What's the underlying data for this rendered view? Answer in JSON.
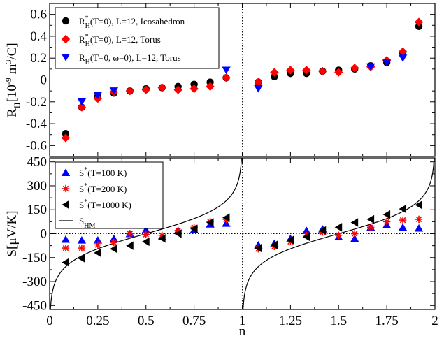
{
  "chart_data": [
    {
      "type": "scatter",
      "panel": "top",
      "ylabel": "R",
      "ylabel_sub": "H",
      "ylabel_rest": "[10",
      "ylabel_exp1": "-9",
      "ylabel_rest2": " m",
      "ylabel_exp2": "3",
      "ylabel_rest3": "/C]",
      "xlim": [
        0,
        2
      ],
      "ylim": [
        -0.7,
        0.7
      ],
      "yticks": [
        -0.6,
        -0.4,
        -0.2,
        0,
        0.2,
        0.4,
        0.6
      ],
      "ytick_labels": [
        "-0.6",
        "-0.4",
        "-0.2",
        "0",
        "0.2",
        "0.4",
        "0.6"
      ],
      "legend_position": "top-left",
      "x": [
        0.0833,
        0.1667,
        0.25,
        0.3333,
        0.4167,
        0.5,
        0.5833,
        0.6667,
        0.75,
        0.8333,
        0.9167,
        1.0833,
        1.1667,
        1.25,
        1.3333,
        1.4167,
        1.5,
        1.5833,
        1.6667,
        1.75,
        1.8333,
        1.9167
      ],
      "series": [
        {
          "name": "R*_H(T=0), L=12, Icosahedron",
          "legend_main": "R",
          "legend_sup": "*",
          "legend_sub": "H",
          "legend_rest": "(T=0), L=12, Icosahedron",
          "marker": "circle",
          "color": "#000000",
          "values": [
            -0.49,
            -0.25,
            -0.15,
            -0.12,
            -0.1,
            -0.08,
            -0.07,
            -0.06,
            -0.04,
            -0.02,
            0.02,
            -0.02,
            0.03,
            0.06,
            0.06,
            0.08,
            0.09,
            0.1,
            0.13,
            0.16,
            0.25,
            0.49
          ]
        },
        {
          "name": "R*_H(T=0), L=12, Torus",
          "legend_main": "R",
          "legend_sup": "*",
          "legend_sub": "H",
          "legend_rest": "(T=0), L=12, Torus",
          "marker": "diamond",
          "color": "#ff0000",
          "values": [
            -0.53,
            -0.25,
            -0.17,
            -0.11,
            -0.1,
            -0.09,
            -0.07,
            -0.09,
            -0.08,
            -0.06,
            0.02,
            -0.02,
            0.07,
            0.09,
            0.09,
            0.08,
            0.07,
            0.11,
            0.12,
            0.18,
            0.26,
            0.53
          ]
        },
        {
          "name": "R_H(T=0, ω=0), L=12, Torus",
          "legend_main": "R",
          "legend_sup": "",
          "legend_sub": "H",
          "legend_rest": "(T=0, ω=0), L=12, Torus",
          "marker": "triangle-down",
          "color": "#0000ff",
          "values": [
            null,
            -0.2,
            -0.14,
            -0.1,
            null,
            null,
            null,
            null,
            null,
            null,
            0.09,
            -0.08,
            null,
            null,
            null,
            null,
            null,
            null,
            0.12,
            0.16,
            0.2,
            null
          ]
        }
      ]
    },
    {
      "type": "scatter",
      "panel": "bottom",
      "xlabel": "n",
      "ylabel": "S[μV/K]",
      "xlim": [
        0,
        2
      ],
      "ylim": [
        -475,
        475
      ],
      "xticks": [
        0,
        0.25,
        0.5,
        0.75,
        1,
        1.25,
        1.5,
        1.75,
        2
      ],
      "xtick_labels": [
        "0",
        "0.25",
        "0.5",
        "0.75",
        "1",
        "1.25",
        "1.5",
        "1.75",
        "2"
      ],
      "yticks": [
        -450,
        -300,
        -150,
        0,
        150,
        300,
        450
      ],
      "ytick_labels": [
        "-450",
        "-300",
        "-150",
        "0",
        "150",
        "300",
        "450"
      ],
      "legend_position": "top-left",
      "x": [
        0.0833,
        0.1667,
        0.25,
        0.3333,
        0.4167,
        0.5,
        0.5833,
        0.6667,
        0.75,
        0.8333,
        0.9167,
        1.0833,
        1.1667,
        1.25,
        1.3333,
        1.4167,
        1.5,
        1.5833,
        1.6667,
        1.75,
        1.8333,
        1.9167
      ],
      "series": [
        {
          "name": "S*(T=100 K)",
          "legend_main": "S",
          "legend_sup": "*",
          "legend_sub": "",
          "legend_rest": "(T=100 K)",
          "marker": "triangle-up",
          "color": "#0000ff",
          "values": [
            -35,
            -40,
            -40,
            -30,
            0,
            25,
            -20,
            20,
            25,
            60,
            65,
            -70,
            -60,
            -30,
            20,
            30,
            -20,
            -30,
            40,
            55,
            40,
            35
          ]
        },
        {
          "name": "S*(T=200 K)",
          "legend_main": "S",
          "legend_sup": "*",
          "legend_sub": "",
          "legend_rest": "(T=200 K)",
          "marker": "asterisk",
          "color": "#ff0000",
          "values": [
            -90,
            -90,
            -70,
            -55,
            0,
            -5,
            -10,
            20,
            40,
            75,
            90,
            -95,
            -80,
            -50,
            -10,
            10,
            -10,
            0,
            40,
            75,
            85,
            90
          ]
        },
        {
          "name": "S*(T=1000 K)",
          "legend_main": "S",
          "legend_sup": "*",
          "legend_sub": "",
          "legend_rest": "(T=1000 K)",
          "marker": "triangle-left",
          "color": "#000000",
          "values": [
            -180,
            -155,
            -120,
            -95,
            -75,
            -50,
            -30,
            0,
            30,
            70,
            100,
            -90,
            -70,
            -40,
            -20,
            20,
            40,
            70,
            90,
            120,
            155,
            180
          ]
        },
        {
          "name": "S_HM",
          "legend_main": "S",
          "legend_sup": "",
          "legend_sub": "HM",
          "legend_rest": "",
          "marker": "line",
          "color": "#000000",
          "formula": "S = 86.17 * ln(n/(1-n)) on 0<n<1 and 86.17 * ln((n-1)/(2-n)) on 1<n<2"
        }
      ]
    }
  ]
}
